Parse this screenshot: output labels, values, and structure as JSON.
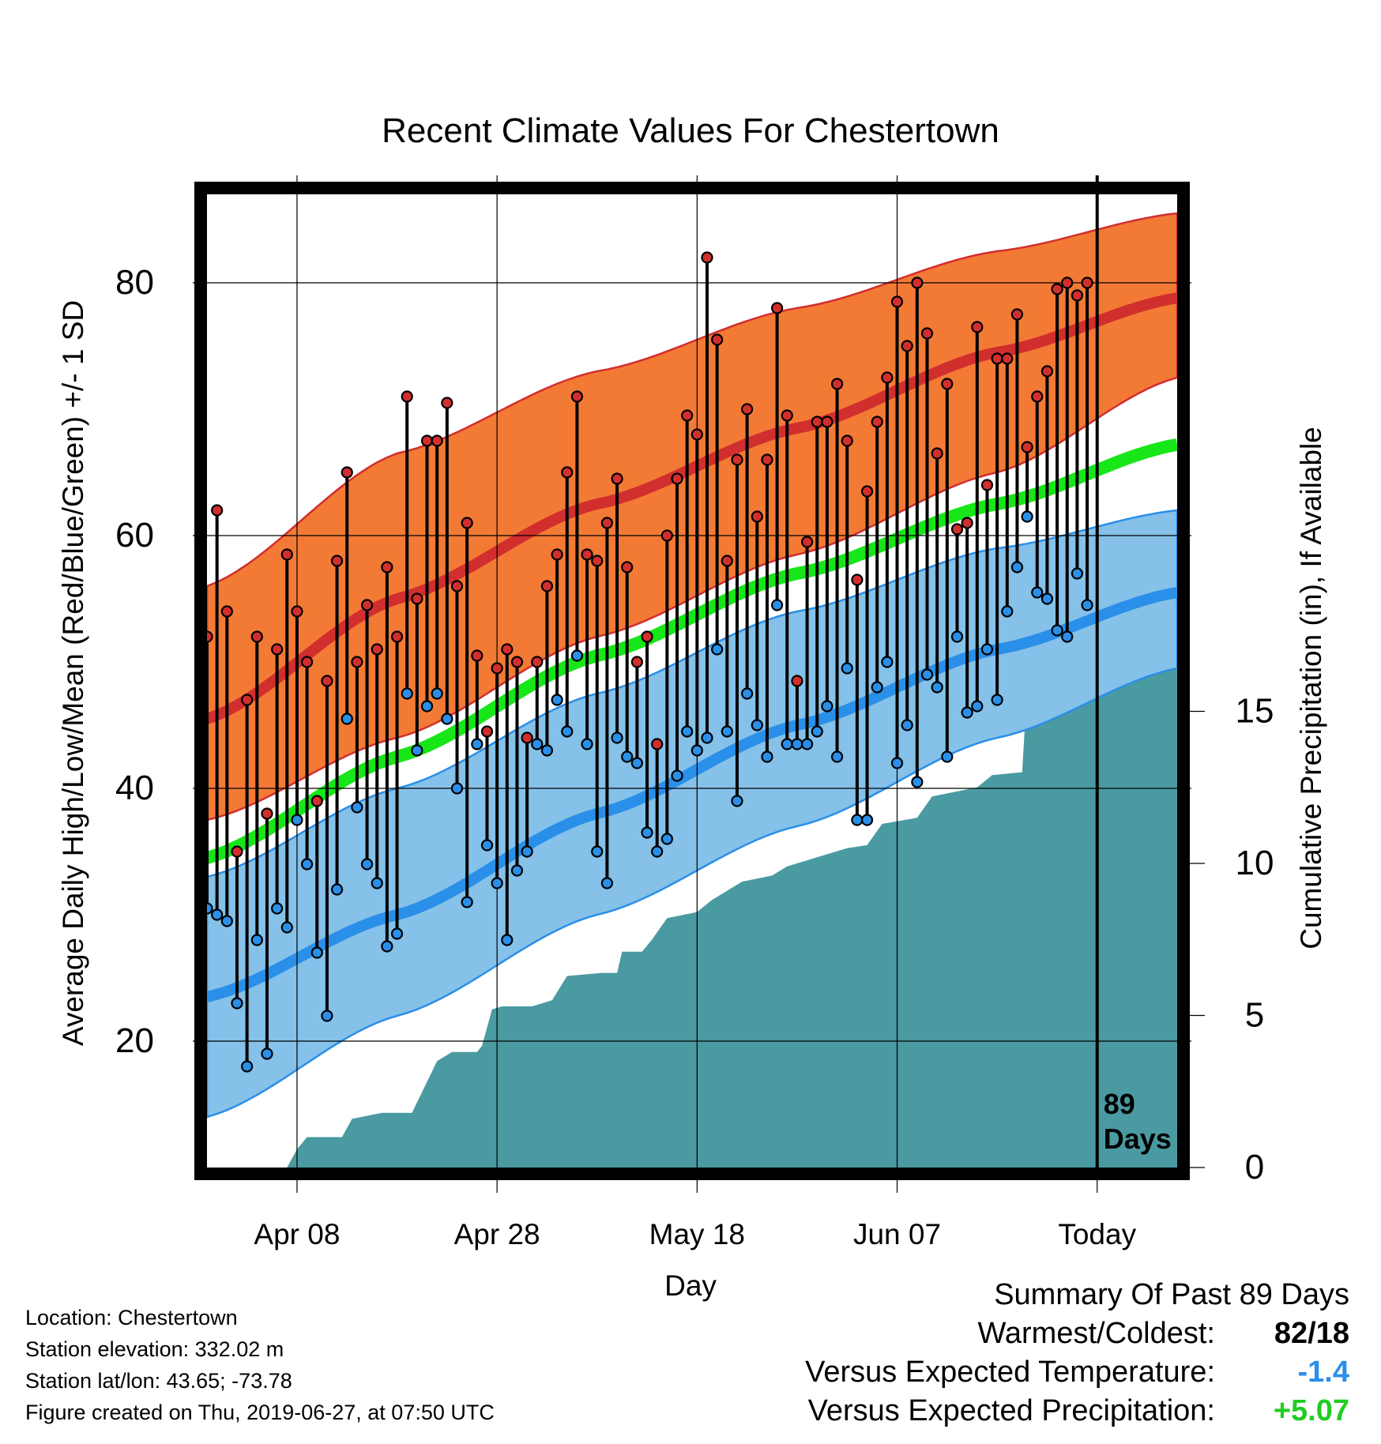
{
  "chart_data": {
    "type": "line",
    "title": "Recent Climate Values For Chestertown",
    "xlabel": "Day",
    "ylabel": "Average Daily High/Low/Mean (Red/Blue/Green) +/- 1 SD",
    "y2label": "Cumulative Precipitation (in), If Available",
    "x_range_days": [
      -89,
      8
    ],
    "ylim": [
      10,
      87
    ],
    "y2lim": [
      0,
      32
    ],
    "yticks": [
      "20",
      "40",
      "60",
      "80"
    ],
    "y2ticks": [
      "0",
      "5",
      "10",
      "15"
    ],
    "xticks": [
      {
        "day": -80,
        "label": "Apr 08"
      },
      {
        "day": -60,
        "label": "Apr 28"
      },
      {
        "day": -40,
        "label": "May 18"
      },
      {
        "day": -20,
        "label": "Jun 07"
      },
      {
        "day": 0,
        "label": "Today"
      }
    ],
    "today_marker_label": "89 Days",
    "colors": {
      "high_band": "#f37a35",
      "high_line": "#d12e2e",
      "low_band": "#85c1e8",
      "low_line": "#2a8fe8",
      "mean_line": "#17e619",
      "precip": "#4a9aa2"
    },
    "normals": {
      "day": [
        -89,
        -70,
        -50,
        -30,
        -10,
        8
      ],
      "high_mean": [
        45.5,
        55,
        62.5,
        68.5,
        74.5,
        78.8
      ],
      "high_upper": [
        56,
        66.5,
        73,
        78,
        82.5,
        85.5
      ],
      "high_lower": [
        37.5,
        44,
        52,
        58.5,
        65,
        72.5
      ],
      "low_mean": [
        23.5,
        30,
        38,
        45,
        51,
        55.5
      ],
      "low_upper": [
        33,
        40,
        47.5,
        54,
        59,
        62
      ],
      "low_lower": [
        14,
        22,
        30,
        37,
        44,
        49.5
      ],
      "avg_mean": [
        34.5,
        42.5,
        50.5,
        57,
        62.5,
        67.2
      ]
    },
    "series": [
      {
        "name": "High",
        "values": [
          52,
          62,
          54,
          35,
          47,
          52,
          38,
          51,
          58.5,
          54,
          50,
          39,
          48.5,
          58,
          65,
          50,
          54.5,
          51,
          57.5,
          52,
          71,
          55,
          67.5,
          67.5,
          70.5,
          56,
          61,
          50.5,
          44.5,
          49.5,
          51,
          50,
          44,
          50,
          56,
          58.5,
          65,
          71,
          58.5,
          58,
          61,
          64.5,
          57.5,
          50,
          52,
          43.5,
          60,
          64.5,
          69.5,
          68,
          82,
          75.5,
          58,
          66,
          70,
          61.5,
          66,
          78,
          69.5,
          48.5,
          59.5,
          69,
          69,
          72,
          67.5,
          56.5,
          63.5,
          69,
          72.5,
          78.5,
          75,
          80,
          76,
          66.5,
          72,
          60.5,
          61,
          76.5,
          64,
          74,
          74,
          77.5,
          67,
          71,
          73,
          79.5,
          80,
          79,
          80
        ]
      },
      {
        "name": "Low",
        "values": [
          30.5,
          30,
          29.5,
          23,
          18,
          28,
          19,
          30.5,
          29,
          37.5,
          34,
          27,
          22,
          32,
          45.5,
          38.5,
          34,
          32.5,
          27.5,
          28.5,
          47.5,
          43,
          46.5,
          47.5,
          45.5,
          40,
          31,
          43.5,
          35.5,
          32.5,
          28,
          33.5,
          35,
          43.5,
          43,
          47,
          44.5,
          50.5,
          43.5,
          35,
          32.5,
          44,
          42.5,
          42,
          36.5,
          35,
          36,
          41,
          44.5,
          43,
          44,
          51,
          44.5,
          39,
          47.5,
          45,
          42.5,
          54.5,
          43.5,
          43.5,
          43.5,
          44.5,
          46.5,
          42.5,
          49.5,
          37.5,
          37.5,
          48,
          50,
          42,
          45,
          40.5,
          49,
          48,
          42.5,
          52,
          46,
          46.5,
          51,
          47,
          54,
          57.5,
          61.5,
          55.5,
          55,
          52.5,
          52,
          57,
          54.5
        ]
      }
    ],
    "precip_cumulative": [
      [
        -89,
        0
      ],
      [
        -81,
        0
      ],
      [
        -80,
        0.6
      ],
      [
        -79,
        1
      ],
      [
        -75.5,
        1
      ],
      [
        -74.5,
        1.6
      ],
      [
        -71.5,
        1.8
      ],
      [
        -68.5,
        1.8
      ],
      [
        -66,
        3.5
      ],
      [
        -64.5,
        3.8
      ],
      [
        -62,
        3.8
      ],
      [
        -61.5,
        4
      ],
      [
        -60.5,
        5.2
      ],
      [
        -59.5,
        5.3
      ],
      [
        -56.5,
        5.3
      ],
      [
        -54.5,
        5.5
      ],
      [
        -53,
        6.3
      ],
      [
        -49.5,
        6.4
      ],
      [
        -48,
        6.4
      ],
      [
        -47.5,
        7.1
      ],
      [
        -45.5,
        7.1
      ],
      [
        -44.5,
        7.5
      ],
      [
        -43,
        8.2
      ],
      [
        -40,
        8.4
      ],
      [
        -38.5,
        8.8
      ],
      [
        -35.5,
        9.4
      ],
      [
        -32.5,
        9.6
      ],
      [
        -31,
        9.9
      ],
      [
        -28,
        10.2
      ],
      [
        -25,
        10.5
      ],
      [
        -23,
        10.6
      ],
      [
        -21.5,
        11.3
      ],
      [
        -18,
        11.5
      ],
      [
        -16.5,
        12.2
      ],
      [
        -12,
        12.5
      ],
      [
        -10.5,
        12.9
      ],
      [
        -7.5,
        13
      ],
      [
        -7,
        15.8
      ],
      [
        -3,
        16.1
      ],
      [
        -2,
        16.3
      ],
      [
        2,
        16.4
      ],
      [
        8,
        16.4
      ]
    ]
  },
  "footer": {
    "location": "Location: Chestertown",
    "elevation": "Station elevation: 332.02 m",
    "latlon": "Station lat/lon: 43.65; -73.78",
    "created": "Figure created on Thu, 2019-06-27, at 07:50 UTC"
  },
  "summary": {
    "heading": "Summary Of Past 89 Days",
    "warmest_label": "Warmest/Coldest:",
    "warmest_value": "82/18",
    "temp_label": "Versus Expected Temperature:",
    "temp_value": "-1.4",
    "precip_label": "Versus Expected Precipitation:",
    "precip_value": "+5.07",
    "temp_color": "#2a8fe8",
    "precip_color": "#22cc22"
  }
}
